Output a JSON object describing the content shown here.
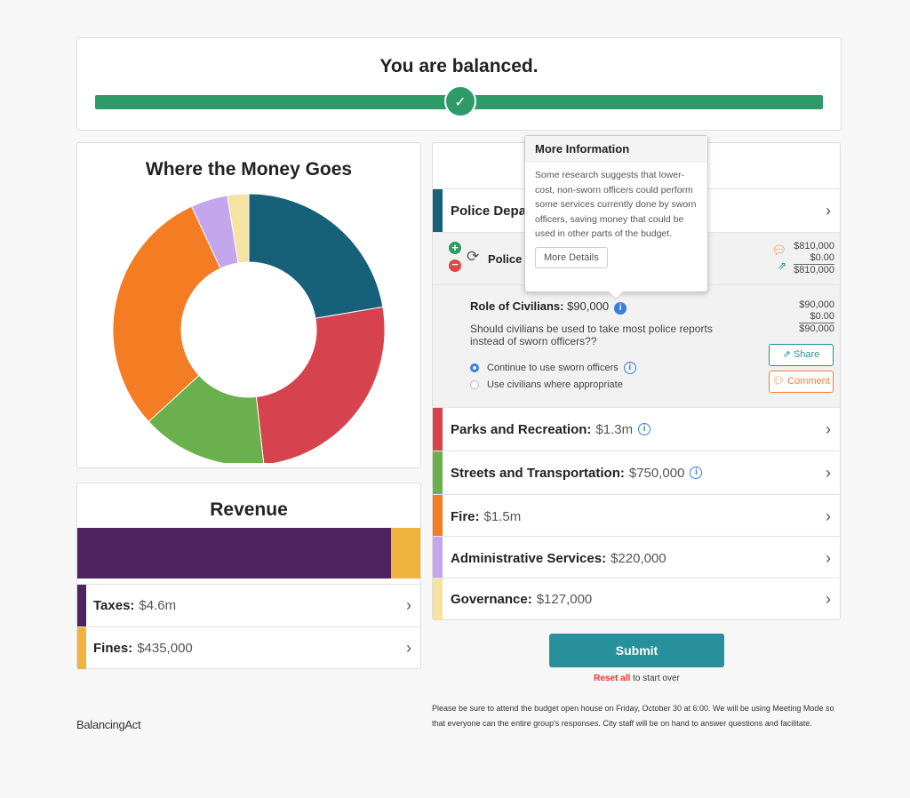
{
  "balance": {
    "title": "You are balanced.",
    "check_icon": "check-icon"
  },
  "spending": {
    "title": "Where the Money Goes"
  },
  "chart_data": {
    "type": "pie",
    "title": "Where the Money Goes",
    "unit": "$m",
    "categories": [
      "Police Department",
      "Parks and Recreation",
      "Streets and Transportation",
      "Fire",
      "Administrative Services",
      "Governance"
    ],
    "values": [
      1.12,
      1.3,
      0.75,
      1.5,
      0.22,
      0.127
    ],
    "colors": [
      "#17607a",
      "#d6434f",
      "#6ab04c",
      "#f47c22",
      "#c3a6ec",
      "#f6e3a1"
    ],
    "donut": true
  },
  "revenue": {
    "title": "Revenue",
    "items": [
      {
        "label": "Taxes:",
        "value": "$4.6m",
        "amount": 4.6,
        "color": "#4f2360"
      },
      {
        "label": "Fines:",
        "value": "$435,000",
        "amount": 0.435,
        "color": "#f0b43c"
      }
    ]
  },
  "budget": {
    "items": [
      {
        "label": "Police Department",
        "value": "",
        "color": "#17607a"
      },
      {
        "label": "Parks and Recreation:",
        "value": "$1.3m",
        "color": "#d6434f",
        "info": true
      },
      {
        "label": "Streets and Transportation:",
        "value": "$750,000",
        "color": "#6ab04c",
        "info": true
      },
      {
        "label": "Fire:",
        "value": "$1.5m",
        "color": "#f47c22"
      },
      {
        "label": "Administrative Services:",
        "value": "$220,000",
        "color": "#c3a6ec"
      },
      {
        "label": "Governance:",
        "value": "$127,000",
        "color": "#f6e3a1"
      }
    ],
    "sub": {
      "label": "Police",
      "amounts": [
        "$810,000",
        "$0.00",
        "$810,000"
      ]
    },
    "question": {
      "title": "Role of Civilians:",
      "value": "$90,000",
      "text": "Should civilians be used to take most police reports instead of sworn officers??",
      "amounts": [
        "$90,000",
        "$0.00",
        "$90,000"
      ],
      "options": [
        {
          "label": "Continue to use sworn officers",
          "selected": true
        },
        {
          "label": "Use civilians where appropriate",
          "selected": false
        }
      ],
      "share": "Share",
      "comment": "Comment"
    }
  },
  "popover": {
    "title": "More Information",
    "text": "Some research suggests that lower-cost, non-sworn officers could perform some services currently done by sworn officers, saving money that could be used in other parts of the budget.",
    "button": "More Details"
  },
  "footer": {
    "submit": "Submit",
    "reset_link": "Reset all",
    "reset_text": " to start over",
    "note": "Please be sure to attend the budget open house on Friday, October 30 at 6:00. We will be using Meeting Mode so that everyone can the entire group's responses. City staff will be on hand to answer questions and facilitate.",
    "logo": "BalancingAct"
  }
}
